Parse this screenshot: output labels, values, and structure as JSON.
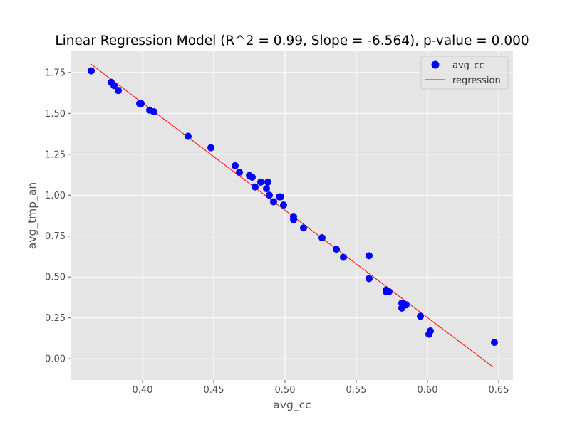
{
  "chart_data": {
    "type": "scatter",
    "title": "Linear Regression Model (R^2 = 0.99, Slope = -6.564), p-value = 0.000",
    "xlabel": "avg_cc",
    "ylabel": "avg_tmp_an",
    "xlim": [
      0.35,
      0.66
    ],
    "ylim": [
      -0.13,
      1.88
    ],
    "x_ticks": [
      0.4,
      0.45,
      0.5,
      0.55,
      0.6,
      0.65
    ],
    "x_tick_labels": [
      "0.40",
      "0.45",
      "0.50",
      "0.55",
      "0.60",
      "0.65"
    ],
    "y_ticks": [
      0.0,
      0.25,
      0.5,
      0.75,
      1.0,
      1.25,
      1.5,
      1.75
    ],
    "y_tick_labels": [
      "0.00",
      "0.25",
      "0.50",
      "0.75",
      "1.00",
      "1.25",
      "1.50",
      "1.75"
    ],
    "grid": true,
    "legend_position": "top-right",
    "series": [
      {
        "name": "avg_cc",
        "kind": "scatter",
        "color": "#0000ff",
        "x": [
          0.364,
          0.378,
          0.38,
          0.383,
          0.398,
          0.399,
          0.405,
          0.408,
          0.432,
          0.448,
          0.465,
          0.468,
          0.475,
          0.477,
          0.479,
          0.483,
          0.487,
          0.488,
          0.489,
          0.492,
          0.496,
          0.497,
          0.499,
          0.506,
          0.506,
          0.513,
          0.526,
          0.536,
          0.541,
          0.559,
          0.559,
          0.571,
          0.571,
          0.573,
          0.582,
          0.582,
          0.585,
          0.595,
          0.601,
          0.602,
          0.647
        ],
        "y": [
          1.76,
          1.69,
          1.67,
          1.64,
          1.56,
          1.56,
          1.52,
          1.51,
          1.36,
          1.29,
          1.18,
          1.14,
          1.12,
          1.11,
          1.05,
          1.08,
          1.04,
          1.08,
          1.0,
          0.96,
          0.99,
          0.99,
          0.94,
          0.87,
          0.85,
          0.8,
          0.74,
          0.67,
          0.62,
          0.63,
          0.49,
          0.41,
          0.42,
          0.41,
          0.34,
          0.31,
          0.33,
          0.26,
          0.15,
          0.17,
          0.1
        ]
      },
      {
        "name": "regression",
        "kind": "line",
        "color": "#ff0000",
        "x": [
          0.364,
          0.646
        ],
        "y": [
          1.8,
          -0.05
        ]
      }
    ]
  }
}
